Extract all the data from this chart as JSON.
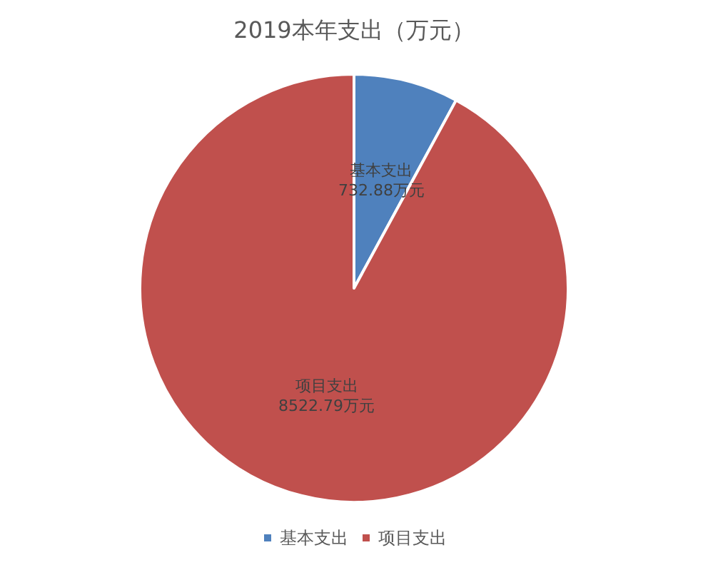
{
  "chart_data": {
    "type": "pie",
    "title": "2019本年支出（万元）",
    "categories": [
      "基本支出",
      "项目支出"
    ],
    "values": [
      732.88,
      8522.79
    ],
    "value_labels": [
      "732.88万元",
      "8522.79万元"
    ],
    "colors": [
      "#4f81bd",
      "#c0504d"
    ],
    "legend": "bottom"
  }
}
